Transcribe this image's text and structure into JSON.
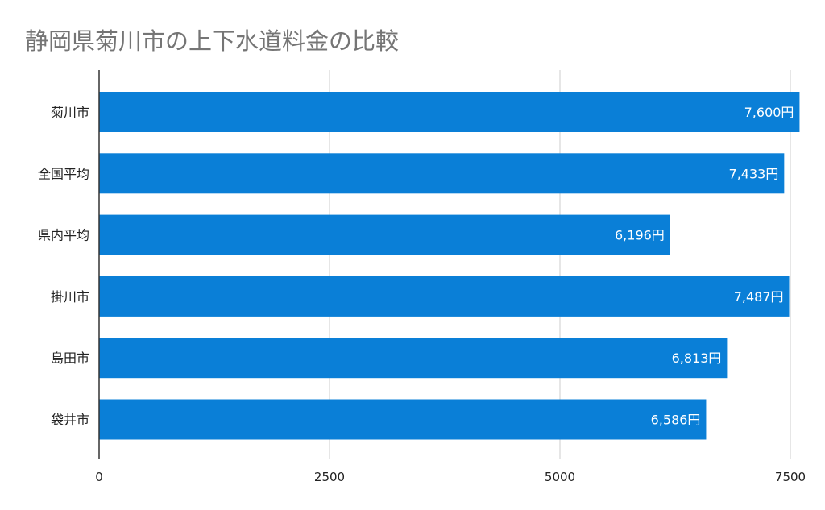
{
  "chart_data": {
    "type": "bar",
    "orientation": "horizontal",
    "title": "静岡県菊川市の上下水道料金の比較",
    "categories": [
      "菊川市",
      "全国平均",
      "県内平均",
      "掛川市",
      "島田市",
      "袋井市"
    ],
    "values": [
      7600,
      7433,
      6196,
      7487,
      6813,
      6586
    ],
    "data_labels": [
      "7,600円",
      "7,433円",
      "6,196円",
      "7,487円",
      "6,813円",
      "6,586円"
    ],
    "xlim": [
      0,
      7500
    ],
    "x_ticks": [
      "0",
      "2500",
      "5000",
      "7500"
    ],
    "x_tick_values": [
      0,
      2500,
      5000,
      7500
    ],
    "grid": true,
    "legend": "none",
    "colors": {
      "bar": "#0a7fd7",
      "title": "#757575",
      "grid": "#cccccc",
      "axis": "#333333"
    }
  }
}
